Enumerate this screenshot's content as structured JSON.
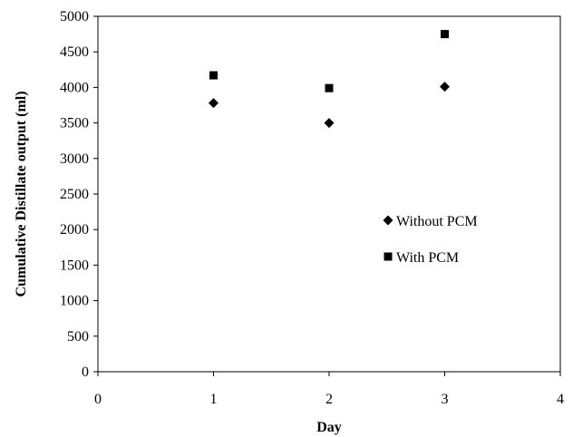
{
  "chart_data": {
    "type": "scatter",
    "xlabel": "Day",
    "ylabel": "Cumulative Distillate output (ml)",
    "xlim": [
      0,
      4
    ],
    "ylim": [
      0,
      5000
    ],
    "xticks": [
      0,
      1,
      2,
      3,
      4
    ],
    "yticks": [
      0,
      500,
      1000,
      1500,
      2000,
      2500,
      3000,
      3500,
      4000,
      4500,
      5000
    ],
    "grid": false,
    "legend_position": "right-center",
    "series": [
      {
        "name": "Without PCM",
        "marker": "diamond",
        "color": "#000000",
        "x": [
          1,
          2,
          3
        ],
        "y": [
          3780,
          3500,
          4010
        ]
      },
      {
        "name": "With PCM",
        "marker": "square",
        "color": "#000000",
        "x": [
          1,
          2,
          3
        ],
        "y": [
          4170,
          3990,
          4750
        ]
      }
    ]
  }
}
